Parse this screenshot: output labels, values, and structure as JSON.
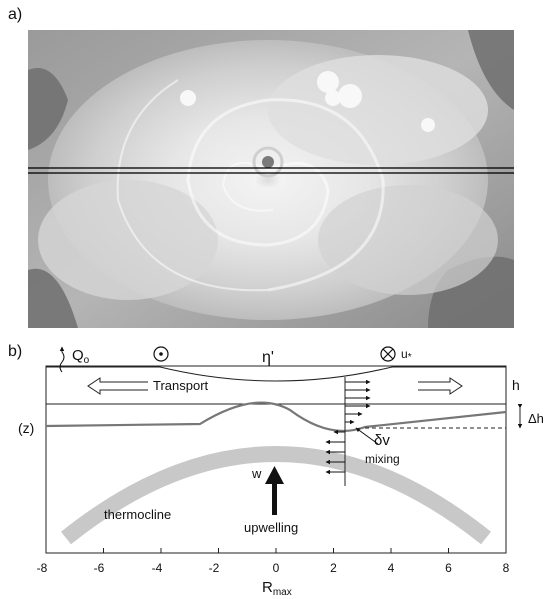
{
  "panel_a": {
    "label": "a)"
  },
  "panel_b": {
    "label": "b)",
    "heat_flux_label": "Q",
    "heat_flux_sub": "o",
    "surface_label": "η'",
    "friction_label": "u",
    "friction_sub": "*",
    "transport_label": "Transport",
    "layer_depth_label": "h",
    "depth_change_label": "Δh",
    "z_label": "(z)",
    "shear_label": "δv",
    "mixing_label": "mixing",
    "w_label": "w",
    "upwelling_label": "upwelling",
    "thermocline_label": "thermocline",
    "x_axis_label": "R",
    "x_axis_sub": "max",
    "x_ticks": [
      "-8",
      "-6",
      "-4",
      "-2",
      "0",
      "2",
      "4",
      "6",
      "8"
    ]
  },
  "colors": {
    "thermocline_band": "#c8c8c8",
    "mixed_layer_curve": "#777777",
    "cloud_bright": "#f4f4f4",
    "cloud_dark": "#6e6e6e"
  }
}
